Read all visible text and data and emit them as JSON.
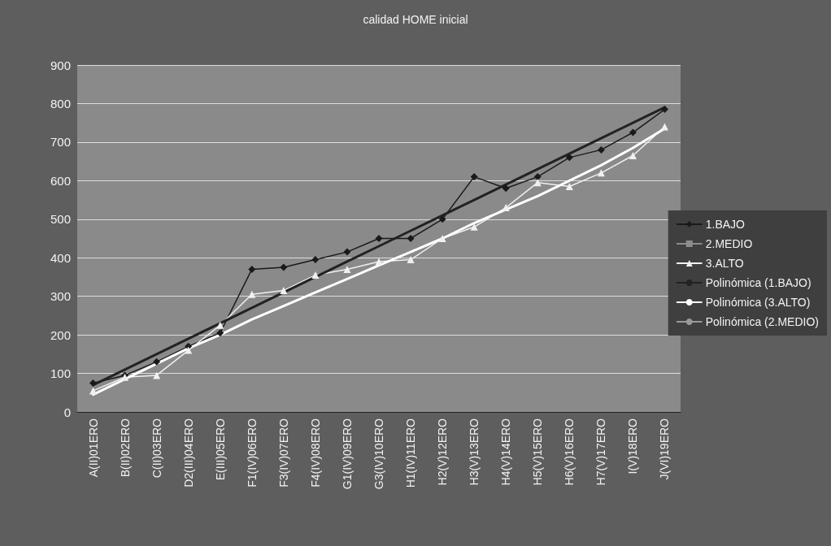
{
  "chart_data": {
    "type": "line",
    "title": "calidad HOME inicial",
    "categories": [
      "A(II)01ERO",
      "B(II)02ERO",
      "C(II)03ERO",
      "D2(III)04ERO",
      "E(III)05ERO",
      "F1(IV)06ERO",
      "F3(IV)07ERO",
      "F4(IV)08ERO",
      "G1(IV)09ERO",
      "G3(IV)10ERO",
      "H1(IV)11ERO",
      "H2(V)12ERO",
      "H3(V)13ERO",
      "H4(V)14ERO",
      "H5(V)15ERO",
      "H6(V)16ERO",
      "H7(V)17ERO",
      "I(V)18ERO",
      "J(VI)19ERO"
    ],
    "series": [
      {
        "name": "1.BAJO",
        "color": "#1a1a1a",
        "marker": "diamond",
        "values": [
          75,
          95,
          130,
          170,
          205,
          370,
          375,
          395,
          415,
          450,
          450,
          500,
          610,
          580,
          610,
          660,
          680,
          725,
          785
        ]
      },
      {
        "name": "2.MEDIO",
        "color": "#8c8c8c",
        "marker": "square",
        "values": [
          null,
          null,
          null,
          null,
          null,
          null,
          null,
          null,
          null,
          null,
          null,
          null,
          null,
          null,
          null,
          null,
          null,
          null,
          null
        ]
      },
      {
        "name": "3.ALTO",
        "color": "#f0f0f0",
        "marker": "triangle",
        "values": [
          55,
          90,
          95,
          160,
          225,
          305,
          315,
          355,
          370,
          390,
          395,
          450,
          480,
          530,
          595,
          585,
          620,
          665,
          740
        ]
      },
      {
        "name": "Polinómica (1.BAJO)",
        "color": "#222222",
        "marker": "none",
        "values": [
          70,
          110,
          150,
          190,
          230,
          270,
          310,
          350,
          390,
          430,
          470,
          510,
          550,
          590,
          630,
          670,
          710,
          750,
          790
        ]
      },
      {
        "name": "Polinómica (3.ALTO)",
        "color": "#ffffff",
        "marker": "none",
        "values": [
          45,
          85,
          125,
          165,
          200,
          240,
          275,
          310,
          345,
          380,
          415,
          450,
          490,
          525,
          560,
          600,
          640,
          685,
          735
        ]
      },
      {
        "name": "Polinómica (2.MEDIO)",
        "color": "#999999",
        "marker": "none",
        "values": [
          null,
          null,
          null,
          null,
          null,
          null,
          null,
          null,
          null,
          null,
          null,
          null,
          null,
          null,
          null,
          null,
          null,
          null,
          null
        ]
      }
    ],
    "ylim": [
      0,
      900
    ],
    "yticks": [
      0,
      100,
      200,
      300,
      400,
      500,
      600,
      700,
      800,
      900
    ],
    "grid": "y",
    "legend": "right"
  }
}
